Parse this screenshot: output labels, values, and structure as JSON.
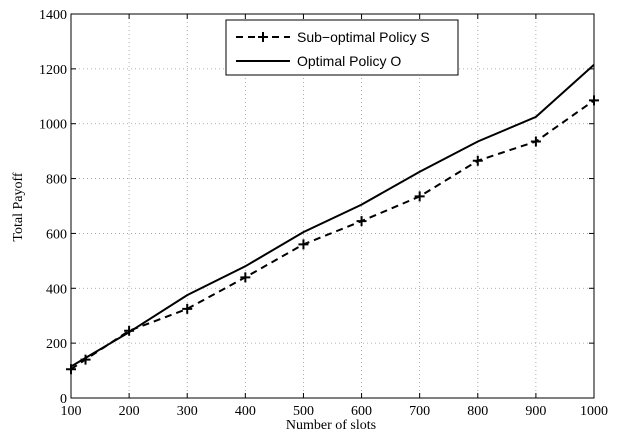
{
  "chart_data": {
    "type": "line",
    "title": "",
    "xlabel": "Number of slots",
    "ylabel": "Total Payoff",
    "xlim": [
      100,
      1000
    ],
    "ylim": [
      0,
      1400
    ],
    "x_ticks": [
      "100",
      "200",
      "300",
      "400",
      "500",
      "600",
      "700",
      "800",
      "900",
      "1000"
    ],
    "y_ticks": [
      "0",
      "200",
      "400",
      "600",
      "800",
      "1000",
      "1200",
      "1400"
    ],
    "grid": true,
    "legend_position": "top-center",
    "series": [
      {
        "name": "Sub−optimal Policy S",
        "style": "dashed",
        "marker": "plus",
        "color": "#000000",
        "x": [
          100,
          125,
          200,
          300,
          400,
          500,
          600,
          700,
          800,
          900,
          1000
        ],
        "y": [
          105,
          140,
          245,
          325,
          440,
          560,
          645,
          735,
          865,
          935,
          1085
        ]
      },
      {
        "name": "Optimal Policy O",
        "style": "solid",
        "marker": "none",
        "color": "#000000",
        "x": [
          100,
          200,
          300,
          400,
          500,
          600,
          700,
          800,
          900,
          1000
        ],
        "y": [
          115,
          240,
          375,
          480,
          605,
          705,
          825,
          935,
          1025,
          1215
        ]
      }
    ]
  }
}
